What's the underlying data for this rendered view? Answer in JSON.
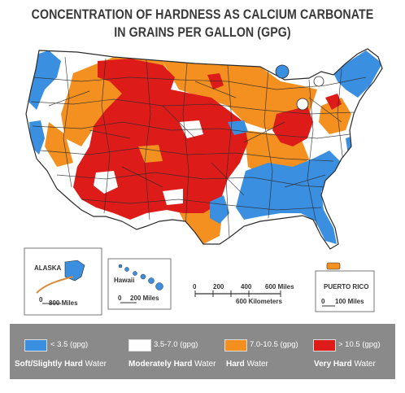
{
  "title_line1": "CONCENTRATION OF HARDNESS AS CALCIUM CARBONATE",
  "title_line2": "IN GRAINS PER GALLON (GPG)",
  "colors": {
    "soft": "#3a8fe0",
    "moderate": "#ffffff",
    "hard": "#f39020",
    "very_hard": "#dd1c1a",
    "border": "#2b2b2b",
    "legend_bg": "#8a8a8a"
  },
  "insets": {
    "alaska": {
      "label": "ALASKA",
      "scale": "800 Miles",
      "scale_zero": "0"
    },
    "hawaii": {
      "label": "Hawaii",
      "scale": "200 Miles",
      "scale_zero": "0"
    },
    "puerto_rico": {
      "label": "PUERTO RICO",
      "scale": "100 Miles",
      "scale_zero": "0"
    }
  },
  "main_scale": {
    "miles_ticks": [
      "0",
      "200",
      "400",
      "600 Miles"
    ],
    "km_label": "600 Kilometers"
  },
  "legend": [
    {
      "range": "< 3.5 (gpg)",
      "desc_bold": "Soft/Slightly Hard",
      "desc_rest": " Water",
      "color": "#3a8fe0"
    },
    {
      "range": "3.5-7.0 (gpg)",
      "desc_bold": "Moderately Hard",
      "desc_rest": " Water",
      "color": "#ffffff"
    },
    {
      "range": "7.0-10.5 (gpg)",
      "desc_bold": "Hard",
      "desc_rest": " Water",
      "color": "#f39020"
    },
    {
      "range": "> 10.5 (gpg)",
      "desc_bold": "Very Hard",
      "desc_rest": " Water",
      "color": "#dd1c1a"
    }
  ]
}
